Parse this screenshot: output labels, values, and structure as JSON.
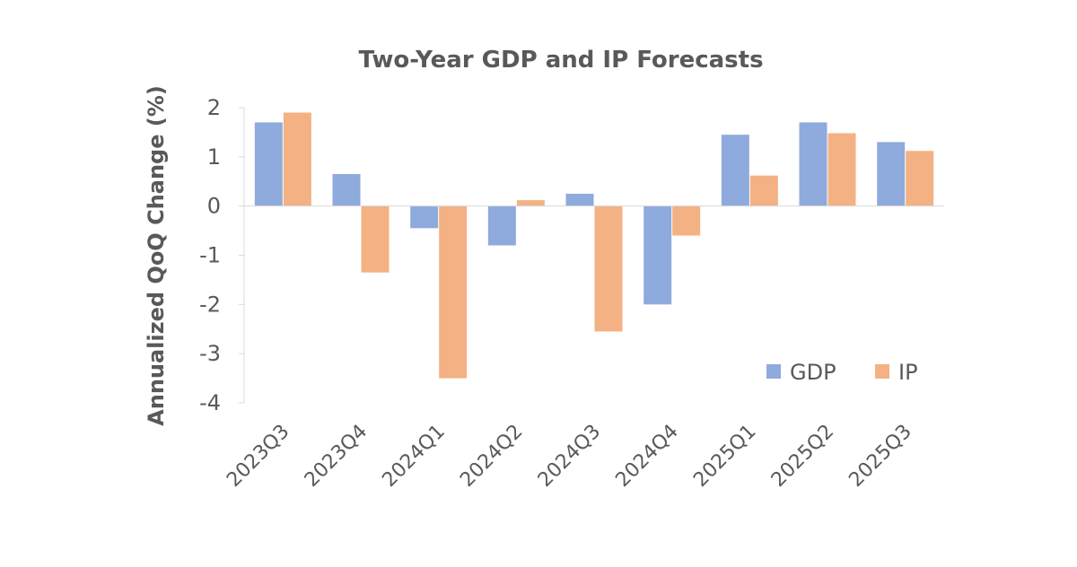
{
  "chart_data": {
    "type": "bar",
    "title": "Two-Year GDP and IP Forecasts",
    "xlabel": "",
    "ylabel": "Annualized QoQ Change (%)",
    "categories": [
      "2023Q3",
      "2023Q4",
      "2024Q1",
      "2024Q2",
      "2024Q3",
      "2024Q4",
      "2025Q1",
      "2025Q2",
      "2025Q3"
    ],
    "series": [
      {
        "name": "GDP",
        "color": "#8FAADC",
        "values": [
          1.7,
          0.65,
          -0.45,
          -0.8,
          0.25,
          -2.0,
          1.45,
          1.7,
          1.3
        ]
      },
      {
        "name": "IP",
        "color": "#F4B183",
        "values": [
          1.9,
          -1.35,
          -3.5,
          0.12,
          -2.55,
          -0.6,
          0.62,
          1.48,
          1.12
        ]
      }
    ],
    "ylim": [
      -4,
      2
    ],
    "yticks": [
      2,
      1,
      0,
      -1,
      -2,
      -3,
      -4
    ],
    "grid": false,
    "legend_position": "bottom-right"
  }
}
